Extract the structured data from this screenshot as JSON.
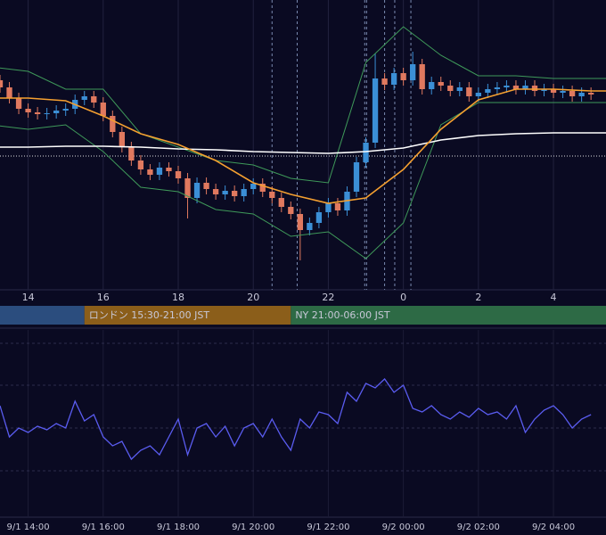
{
  "chart_data": [
    {
      "type": "candlestick",
      "xlim": [
        13.25,
        29.4
      ],
      "ylim": [
        0,
        325
      ],
      "up_color": "#3b8fd6",
      "down_color": "#e0795f",
      "xticks": [
        14,
        16,
        18,
        20,
        22,
        {
          "value": 24,
          "label": "0"
        },
        {
          "value": 26,
          "label": "2"
        },
        {
          "value": 28,
          "label": "4"
        }
      ],
      "x": [
        13.25,
        13.5,
        13.75,
        14,
        14.25,
        14.5,
        14.75,
        15,
        15.25,
        15.5,
        15.75,
        16,
        16.25,
        16.5,
        16.75,
        17,
        17.25,
        17.5,
        17.75,
        18,
        18.25,
        18.5,
        18.75,
        19,
        19.25,
        19.5,
        19.75,
        20,
        20.25,
        20.5,
        20.75,
        21,
        21.25,
        21.5,
        21.75,
        22,
        22.25,
        22.5,
        22.75,
        23,
        23.25,
        23.5,
        23.75,
        24,
        24.25,
        24.5,
        24.75,
        25,
        25.25,
        25.5,
        25.75,
        26,
        26.25,
        26.5,
        26.75,
        27,
        27.25,
        27.5,
        27.75,
        28,
        28.25,
        28.5,
        28.75,
        29
      ],
      "open": [
        235,
        227,
        215,
        203,
        199,
        197,
        198,
        201,
        203,
        213,
        217,
        210,
        195,
        177,
        160,
        145,
        135,
        129,
        137,
        133,
        125,
        103,
        120,
        113,
        107,
        111,
        105,
        113,
        119,
        110,
        103,
        93,
        85,
        67,
        75,
        87,
        97,
        89,
        110,
        143,
        165,
        237,
        230,
        243,
        235,
        253,
        225,
        233,
        229,
        223,
        227,
        217,
        221,
        225,
        227,
        229,
        225,
        229,
        223,
        225,
        221,
        223,
        217,
        221
      ],
      "high": [
        241,
        233,
        221,
        209,
        205,
        204,
        207,
        209,
        219,
        223,
        223,
        216,
        201,
        183,
        166,
        151,
        141,
        143,
        143,
        139,
        131,
        126,
        126,
        119,
        117,
        117,
        119,
        125,
        125,
        116,
        109,
        99,
        91,
        81,
        93,
        103,
        103,
        116,
        149,
        171,
        265,
        243,
        249,
        249,
        267,
        259,
        239,
        239,
        235,
        233,
        233,
        227,
        231,
        233,
        235,
        235,
        235,
        235,
        231,
        231,
        229,
        229,
        227,
        227
      ],
      "low": [
        221,
        209,
        197,
        193,
        191,
        191,
        192,
        195,
        197,
        207,
        204,
        189,
        171,
        154,
        139,
        129,
        123,
        123,
        127,
        119,
        80,
        97,
        107,
        101,
        101,
        99,
        99,
        107,
        104,
        97,
        87,
        79,
        33,
        61,
        69,
        81,
        83,
        83,
        104,
        137,
        159,
        224,
        224,
        229,
        229,
        219,
        219,
        223,
        217,
        217,
        211,
        211,
        215,
        219,
        221,
        219,
        219,
        217,
        217,
        215,
        215,
        211,
        211,
        213
      ],
      "close": [
        227,
        215,
        203,
        199,
        197,
        198,
        201,
        203,
        213,
        217,
        210,
        195,
        177,
        160,
        145,
        135,
        129,
        137,
        133,
        125,
        103,
        120,
        113,
        107,
        111,
        105,
        113,
        119,
        110,
        103,
        93,
        85,
        67,
        75,
        87,
        97,
        89,
        110,
        143,
        165,
        237,
        230,
        243,
        235,
        253,
        225,
        233,
        229,
        223,
        227,
        217,
        221,
        225,
        227,
        229,
        225,
        229,
        223,
        225,
        221,
        223,
        217,
        221,
        219
      ],
      "overlay_x": [
        13,
        14,
        15,
        16,
        17,
        18,
        19,
        20,
        21,
        22,
        23,
        24,
        25,
        26,
        27,
        28,
        29,
        30
      ],
      "overlays": [
        {
          "color": "#3f9a5a",
          "values": [
            250,
            245,
            225,
            225,
            175,
            160,
            145,
            140,
            125,
            120,
            255,
            295,
            263,
            240,
            240,
            237,
            237,
            237
          ]
        },
        {
          "color": "#3f9a5a",
          "values": [
            185,
            180,
            185,
            155,
            115,
            110,
            90,
            85,
            60,
            65,
            35,
            75,
            185,
            210,
            210,
            210,
            210,
            210
          ]
        },
        {
          "color": "#ffffff",
          "values": [
            160,
            160,
            161,
            161,
            160,
            158,
            157,
            155,
            154,
            153,
            155,
            159,
            168,
            173,
            175,
            176,
            176,
            176
          ]
        },
        {
          "color": "#f5a030",
          "values": [
            215,
            215,
            212,
            195,
            175,
            163,
            145,
            120,
            107,
            97,
            103,
            135,
            180,
            213,
            225,
            225,
            223,
            223
          ]
        }
      ],
      "hline": 150,
      "event_lines": [
        20.5,
        21.17,
        22.97,
        23.02,
        23.5,
        23.77,
        24.2
      ],
      "sessions": [
        {
          "label": null,
          "start": 9,
          "end": 15.5,
          "color": "#2b4d7e"
        },
        {
          "label": "ロンドン 15:30-21:00 JST",
          "start": 15.5,
          "end": 21,
          "color": "#8b5e1a"
        },
        {
          "label": "NY 21:00-06:00 JST",
          "start": 21,
          "end": 30,
          "color": "#2d6a45"
        }
      ]
    },
    {
      "type": "line",
      "xlim": [
        13.25,
        29.4
      ],
      "ylim": [
        0,
        210
      ],
      "color": "#5a5cf0",
      "xticks": [
        {
          "value": 14,
          "label": "9/1 14:00"
        },
        {
          "value": 16,
          "label": "9/1 16:00"
        },
        {
          "value": 18,
          "label": "9/1 18:00"
        },
        {
          "value": 20,
          "label": "9/1 20:00"
        },
        {
          "value": 22,
          "label": "9/1 22:00"
        },
        {
          "value": 24,
          "label": "9/2 00:00"
        },
        {
          "value": 26,
          "label": "9/2 02:00"
        },
        {
          "value": 28,
          "label": "9/2 04:00"
        }
      ],
      "grid_levels": [
        195,
        148,
        100,
        52
      ],
      "x": [
        13.25,
        13.5,
        13.75,
        14,
        14.25,
        14.5,
        14.75,
        15,
        15.25,
        15.5,
        15.75,
        16,
        16.25,
        16.5,
        16.75,
        17,
        17.25,
        17.5,
        17.75,
        18,
        18.25,
        18.5,
        18.75,
        19,
        19.25,
        19.5,
        19.75,
        20,
        20.25,
        20.5,
        20.75,
        21,
        21.25,
        21.5,
        21.75,
        22,
        22.25,
        22.5,
        22.75,
        23,
        23.25,
        23.5,
        23.75,
        24,
        24.25,
        24.5,
        24.75,
        25,
        25.25,
        25.5,
        25.75,
        26,
        26.25,
        26.5,
        26.75,
        27,
        27.25,
        27.5,
        27.75,
        28,
        28.25,
        28.5,
        28.75,
        29
      ],
      "values": [
        125,
        90,
        100,
        95,
        102,
        98,
        105,
        100,
        130,
        108,
        115,
        90,
        80,
        85,
        65,
        75,
        80,
        70,
        90,
        110,
        70,
        100,
        105,
        90,
        102,
        80,
        100,
        105,
        90,
        110,
        90,
        75,
        110,
        100,
        118,
        115,
        105,
        140,
        130,
        150,
        145,
        155,
        140,
        148,
        122,
        118,
        125,
        115,
        110,
        118,
        112,
        122,
        115,
        118,
        110,
        125,
        95,
        110,
        120,
        125,
        115,
        100,
        110,
        115
      ]
    }
  ]
}
